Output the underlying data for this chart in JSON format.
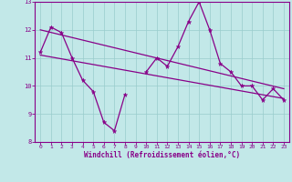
{
  "x": [
    0,
    1,
    2,
    3,
    4,
    5,
    6,
    7,
    8,
    9,
    10,
    11,
    12,
    13,
    14,
    15,
    16,
    17,
    18,
    19,
    20,
    21,
    22,
    23
  ],
  "y_main": [
    11.2,
    12.1,
    11.9,
    11.0,
    10.2,
    9.8,
    8.7,
    8.4,
    9.7,
    null,
    10.5,
    11.0,
    10.7,
    11.4,
    12.3,
    13.0,
    12.0,
    10.8,
    10.5,
    10.0,
    10.0,
    9.5,
    9.9,
    9.5
  ],
  "trend1_x": [
    0,
    23
  ],
  "trend1_y": [
    12.0,
    9.9
  ],
  "trend2_x": [
    0,
    23
  ],
  "trend2_y": [
    11.1,
    9.55
  ],
  "xlim": [
    -0.5,
    23.5
  ],
  "ylim": [
    8,
    13
  ],
  "xticks": [
    0,
    1,
    2,
    3,
    4,
    5,
    6,
    7,
    8,
    9,
    10,
    11,
    12,
    13,
    14,
    15,
    16,
    17,
    18,
    19,
    20,
    21,
    22,
    23
  ],
  "yticks": [
    8,
    9,
    10,
    11,
    12,
    13
  ],
  "xlabel": "Windchill (Refroidissement éolien,°C)",
  "bg_color": "#c2e8e8",
  "line_color": "#880088",
  "trend_color": "#880088",
  "grid_color": "#99cccc",
  "tick_color": "#880088",
  "label_color": "#880088"
}
